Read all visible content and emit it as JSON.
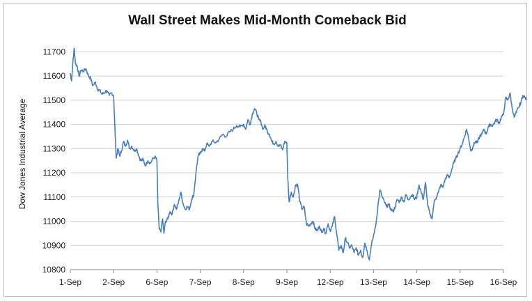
{
  "chart_data": {
    "type": "line",
    "title": "Wall Street Makes Mid-Month Comeback Bid",
    "xlabel": "",
    "ylabel": "Dow Jones Industrial Average",
    "categories": [
      "1-Sep",
      "2-Sep",
      "6-Sep",
      "7-Sep",
      "8-Sep",
      "9-Sep",
      "12-Sep",
      "13-Sep",
      "14-Sep",
      "15-Sep",
      "16-Sep"
    ],
    "ylim": [
      10800,
      11750
    ],
    "yticks": [
      10800,
      10900,
      11000,
      11100,
      11200,
      11300,
      11400,
      11500,
      11600,
      11700
    ],
    "grid": true,
    "line_color": "#4a7ebb",
    "series": [
      {
        "name": "",
        "points": [
          [
            0.0,
            11610
          ],
          [
            0.03,
            11580
          ],
          [
            0.06,
            11660
          ],
          [
            0.09,
            11715
          ],
          [
            0.12,
            11650
          ],
          [
            0.16,
            11640
          ],
          [
            0.2,
            11600
          ],
          [
            0.25,
            11625
          ],
          [
            0.3,
            11620
          ],
          [
            0.36,
            11630
          ],
          [
            0.42,
            11600
          ],
          [
            0.47,
            11590
          ],
          [
            0.52,
            11560
          ],
          [
            0.58,
            11575
          ],
          [
            0.63,
            11545
          ],
          [
            0.68,
            11540
          ],
          [
            0.73,
            11525
          ],
          [
            0.78,
            11530
          ],
          [
            0.84,
            11540
          ],
          [
            0.9,
            11520
          ],
          [
            0.95,
            11530
          ],
          [
            1.0,
            11520
          ],
          [
            1.03,
            11380
          ],
          [
            1.06,
            11260
          ],
          [
            1.1,
            11300
          ],
          [
            1.14,
            11270
          ],
          [
            1.18,
            11290
          ],
          [
            1.23,
            11330
          ],
          [
            1.27,
            11310
          ],
          [
            1.32,
            11335
          ],
          [
            1.37,
            11300
          ],
          [
            1.42,
            11310
          ],
          [
            1.48,
            11290
          ],
          [
            1.53,
            11300
          ],
          [
            1.58,
            11270
          ],
          [
            1.63,
            11250
          ],
          [
            1.68,
            11255
          ],
          [
            1.73,
            11230
          ],
          [
            1.79,
            11250
          ],
          [
            1.85,
            11240
          ],
          [
            1.91,
            11260
          ],
          [
            1.97,
            11265
          ],
          [
            2.0,
            11250
          ],
          [
            2.02,
            11080
          ],
          [
            2.05,
            10970
          ],
          [
            2.09,
            10955
          ],
          [
            2.13,
            11010
          ],
          [
            2.16,
            10950
          ],
          [
            2.2,
            11000
          ],
          [
            2.25,
            11010
          ],
          [
            2.3,
            11040
          ],
          [
            2.35,
            11030
          ],
          [
            2.4,
            11070
          ],
          [
            2.45,
            11050
          ],
          [
            2.5,
            11080
          ],
          [
            2.55,
            11120
          ],
          [
            2.6,
            11075
          ],
          [
            2.65,
            11050
          ],
          [
            2.7,
            11060
          ],
          [
            2.75,
            11050
          ],
          [
            2.8,
            11090
          ],
          [
            2.85,
            11110
          ],
          [
            2.9,
            11200
          ],
          [
            2.95,
            11270
          ],
          [
            3.0,
            11280
          ],
          [
            3.05,
            11300
          ],
          [
            3.1,
            11290
          ],
          [
            3.15,
            11320
          ],
          [
            3.2,
            11310
          ],
          [
            3.28,
            11330
          ],
          [
            3.36,
            11325
          ],
          [
            3.44,
            11340
          ],
          [
            3.52,
            11360
          ],
          [
            3.6,
            11350
          ],
          [
            3.68,
            11370
          ],
          [
            3.76,
            11380
          ],
          [
            3.84,
            11395
          ],
          [
            3.92,
            11390
          ],
          [
            4.0,
            11400
          ],
          [
            4.05,
            11380
          ],
          [
            4.1,
            11420
          ],
          [
            4.15,
            11400
          ],
          [
            4.2,
            11440
          ],
          [
            4.25,
            11465
          ],
          [
            4.3,
            11450
          ],
          [
            4.35,
            11420
          ],
          [
            4.4,
            11410
          ],
          [
            4.45,
            11380
          ],
          [
            4.5,
            11395
          ],
          [
            4.55,
            11370
          ],
          [
            4.6,
            11360
          ],
          [
            4.65,
            11330
          ],
          [
            4.7,
            11320
          ],
          [
            4.75,
            11330
          ],
          [
            4.8,
            11310
          ],
          [
            4.85,
            11315
          ],
          [
            4.9,
            11295
          ],
          [
            4.95,
            11330
          ],
          [
            5.0,
            11320
          ],
          [
            5.02,
            11180
          ],
          [
            5.05,
            11080
          ],
          [
            5.1,
            11120
          ],
          [
            5.15,
            11100
          ],
          [
            5.2,
            11150
          ],
          [
            5.25,
            11150
          ],
          [
            5.3,
            11080
          ],
          [
            5.35,
            11050
          ],
          [
            5.4,
            11060
          ],
          [
            5.45,
            10990
          ],
          [
            5.5,
            10980
          ],
          [
            5.55,
            10990
          ],
          [
            5.6,
            11000
          ],
          [
            5.65,
            10970
          ],
          [
            5.7,
            10960
          ],
          [
            5.75,
            10980
          ],
          [
            5.8,
            10955
          ],
          [
            5.85,
            10970
          ],
          [
            5.9,
            10950
          ],
          [
            5.95,
            10990
          ],
          [
            6.0,
            10960
          ],
          [
            6.05,
            10980
          ],
          [
            6.1,
            11020
          ],
          [
            6.15,
            10950
          ],
          [
            6.2,
            10880
          ],
          [
            6.25,
            10900
          ],
          [
            6.3,
            10870
          ],
          [
            6.35,
            10930
          ],
          [
            6.4,
            10910
          ],
          [
            6.45,
            10890
          ],
          [
            6.5,
            10900
          ],
          [
            6.55,
            10870
          ],
          [
            6.6,
            10890
          ],
          [
            6.65,
            10860
          ],
          [
            6.7,
            10880
          ],
          [
            6.75,
            10850
          ],
          [
            6.8,
            10910
          ],
          [
            6.85,
            10880
          ],
          [
            6.9,
            10840
          ],
          [
            6.95,
            10900
          ],
          [
            7.0,
            10940
          ],
          [
            7.05,
            10980
          ],
          [
            7.1,
            11060
          ],
          [
            7.15,
            11130
          ],
          [
            7.2,
            11100
          ],
          [
            7.25,
            11080
          ],
          [
            7.3,
            11060
          ],
          [
            7.35,
            11070
          ],
          [
            7.4,
            11050
          ],
          [
            7.45,
            11040
          ],
          [
            7.5,
            11060
          ],
          [
            7.55,
            11090
          ],
          [
            7.6,
            11080
          ],
          [
            7.65,
            11100
          ],
          [
            7.7,
            11080
          ],
          [
            7.75,
            11110
          ],
          [
            7.8,
            11090
          ],
          [
            7.85,
            11100
          ],
          [
            7.9,
            11110
          ],
          [
            7.95,
            11090
          ],
          [
            8.0,
            11100
          ],
          [
            8.05,
            11150
          ],
          [
            8.1,
            11120
          ],
          [
            8.15,
            11090
          ],
          [
            8.2,
            11160
          ],
          [
            8.25,
            11070
          ],
          [
            8.3,
            11030
          ],
          [
            8.35,
            11010
          ],
          [
            8.4,
            11080
          ],
          [
            8.45,
            11100
          ],
          [
            8.5,
            11120
          ],
          [
            8.55,
            11150
          ],
          [
            8.6,
            11140
          ],
          [
            8.65,
            11170
          ],
          [
            8.7,
            11190
          ],
          [
            8.75,
            11180
          ],
          [
            8.8,
            11210
          ],
          [
            8.85,
            11240
          ],
          [
            8.9,
            11260
          ],
          [
            8.95,
            11280
          ],
          [
            9.0,
            11300
          ],
          [
            9.05,
            11320
          ],
          [
            9.1,
            11350
          ],
          [
            9.15,
            11380
          ],
          [
            9.2,
            11340
          ],
          [
            9.25,
            11290
          ],
          [
            9.3,
            11310
          ],
          [
            9.35,
            11330
          ],
          [
            9.4,
            11325
          ],
          [
            9.45,
            11350
          ],
          [
            9.5,
            11360
          ],
          [
            9.55,
            11380
          ],
          [
            9.6,
            11360
          ],
          [
            9.65,
            11390
          ],
          [
            9.7,
            11400
          ],
          [
            9.75,
            11395
          ],
          [
            9.8,
            11410
          ],
          [
            9.85,
            11420
          ],
          [
            9.9,
            11405
          ],
          [
            9.95,
            11430
          ],
          [
            10.0,
            11440
          ],
          [
            10.05,
            11510
          ],
          [
            10.1,
            11500
          ],
          [
            10.15,
            11530
          ],
          [
            10.2,
            11470
          ],
          [
            10.25,
            11430
          ],
          [
            10.3,
            11450
          ],
          [
            10.35,
            11470
          ],
          [
            10.4,
            11490
          ],
          [
            10.45,
            11520
          ],
          [
            10.5,
            11510
          ],
          [
            10.55,
            11500
          ],
          [
            10.6,
            11490
          ],
          [
            10.65,
            11510
          ],
          [
            10.7,
            11500
          ],
          [
            10.75,
            11480
          ],
          [
            10.8,
            11500
          ],
          [
            10.85,
            11510
          ],
          [
            10.9,
            11490
          ],
          [
            10.95,
            11480
          ],
          [
            11.0,
            11510
          ]
        ]
      }
    ]
  }
}
